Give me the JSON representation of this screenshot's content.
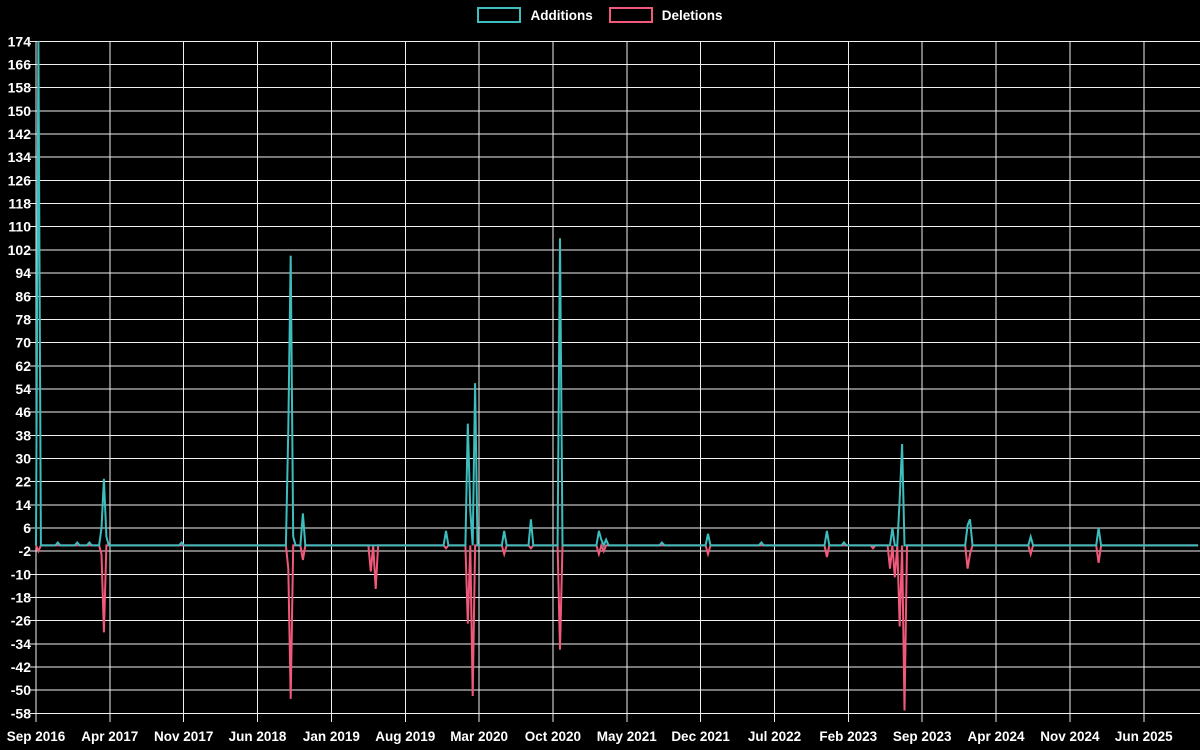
{
  "legend": {
    "items": [
      {
        "label": "Additions",
        "color": "#3dbdbd"
      },
      {
        "label": "Deletions",
        "color": "#f1597b"
      }
    ]
  },
  "chart_data": {
    "type": "line",
    "title": "",
    "x_tick_labels": [
      "Sep 2016",
      "Apr 2017",
      "Nov 2017",
      "Jun 2018",
      "Jan 2019",
      "Aug 2019",
      "Mar 2020",
      "Oct 2020",
      "May 2021",
      "Dec 2021",
      "Jul 2022",
      "Feb 2023",
      "Sep 2023",
      "Apr 2024",
      "Nov 2024",
      "Jun 2025"
    ],
    "x_tick_interval_months": 7,
    "y_ticks": [
      174,
      166,
      158,
      150,
      142,
      134,
      126,
      118,
      110,
      102,
      94,
      86,
      78,
      70,
      62,
      54,
      46,
      38,
      30,
      22,
      14,
      6,
      -2,
      -10,
      -18,
      -26,
      -34,
      -42,
      -50,
      -58
    ],
    "ylim": [
      -58,
      174
    ],
    "x_total_weeks": 480,
    "weeks_per_x_tick": 30.44,
    "grid": true,
    "legend_position": "top-center",
    "colors": {
      "background": "#000000",
      "grid": "#efefef",
      "text": "#ffffff"
    },
    "series": [
      {
        "name": "Additions",
        "color": "#3dbdbd",
        "baseline": 0,
        "spikes": [
          [
            1,
            174
          ],
          [
            9,
            1
          ],
          [
            17,
            1
          ],
          [
            22,
            1
          ],
          [
            27,
            6
          ],
          [
            28,
            23
          ],
          [
            29,
            3
          ],
          [
            60,
            1
          ],
          [
            104,
            40
          ],
          [
            105,
            100
          ],
          [
            106,
            3
          ],
          [
            110,
            11
          ],
          [
            169,
            5
          ],
          [
            178,
            42
          ],
          [
            179,
            12
          ],
          [
            181,
            56
          ],
          [
            193,
            5
          ],
          [
            204,
            9
          ],
          [
            216,
            106
          ],
          [
            232,
            5
          ],
          [
            233,
            2
          ],
          [
            235,
            2
          ],
          [
            258,
            1
          ],
          [
            277,
            4
          ],
          [
            299,
            1
          ],
          [
            326,
            5
          ],
          [
            333,
            1
          ],
          [
            353,
            6
          ],
          [
            356,
            16
          ],
          [
            357,
            35
          ],
          [
            384,
            7
          ],
          [
            385,
            9
          ],
          [
            410,
            3
          ],
          [
            438,
            6
          ]
        ]
      },
      {
        "name": "Deletions",
        "color": "#f1597b",
        "baseline": 0,
        "spikes": [
          [
            1,
            -2
          ],
          [
            27,
            -3
          ],
          [
            28,
            -30
          ],
          [
            104,
            -8
          ],
          [
            105,
            -53
          ],
          [
            110,
            -5
          ],
          [
            138,
            -9
          ],
          [
            140,
            -15
          ],
          [
            169,
            -1
          ],
          [
            178,
            -27
          ],
          [
            180,
            -52
          ],
          [
            193,
            -3
          ],
          [
            204,
            -1
          ],
          [
            216,
            -36
          ],
          [
            232,
            -3
          ],
          [
            234,
            -2
          ],
          [
            277,
            -3
          ],
          [
            326,
            -4
          ],
          [
            345,
            -1
          ],
          [
            352,
            -8
          ],
          [
            354,
            -11
          ],
          [
            356,
            -28
          ],
          [
            358,
            -57
          ],
          [
            384,
            -8
          ],
          [
            385,
            -3
          ],
          [
            410,
            -3
          ],
          [
            438,
            -6
          ]
        ]
      }
    ]
  }
}
